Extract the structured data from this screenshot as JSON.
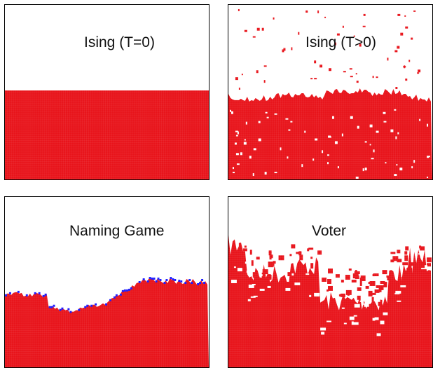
{
  "panels": [
    {
      "title": "Ising (T=0)",
      "colors": {
        "filled": "#e8141b",
        "empty": "#ffffff"
      }
    },
    {
      "title": "Ising (T>0)",
      "colors": {
        "filled": "#e8141b",
        "empty": "#ffffff"
      }
    },
    {
      "title": "Naming Game",
      "colors": {
        "filled": "#e8141b",
        "empty": "#ffffff",
        "interface": "#1a1aff"
      }
    },
    {
      "title": "Voter",
      "colors": {
        "filled": "#e8141b",
        "empty": "#ffffff"
      }
    }
  ]
}
